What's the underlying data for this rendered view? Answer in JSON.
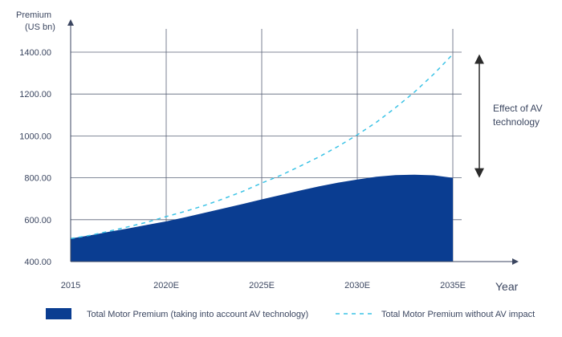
{
  "chart_data": {
    "type": "area",
    "ylabel_lines": [
      "Premium",
      "(US bn)"
    ],
    "xlabel": "Year",
    "x_categories": [
      "2015",
      "2020E",
      "2025E",
      "2030E",
      "2035E"
    ],
    "y_ticks": [
      "400.00",
      "600.00",
      "800.00",
      "1000.00",
      "1200.00",
      "1400.00"
    ],
    "ylim": [
      400,
      1400
    ],
    "xlim": [
      2015,
      2035
    ],
    "grid": true,
    "series": [
      {
        "name": "Total Motor Premium (taking into account AV technology)",
        "style": "filled-area",
        "color": "#0a3d91",
        "points": [
          [
            2015,
            510
          ],
          [
            2016,
            525
          ],
          [
            2017,
            542
          ],
          [
            2018,
            558
          ],
          [
            2019,
            575
          ],
          [
            2020,
            592
          ],
          [
            2021,
            612
          ],
          [
            2022,
            633
          ],
          [
            2023,
            654
          ],
          [
            2024,
            675
          ],
          [
            2025,
            697
          ],
          [
            2026,
            718
          ],
          [
            2027,
            739
          ],
          [
            2028,
            759
          ],
          [
            2029,
            777
          ],
          [
            2030,
            792
          ],
          [
            2031,
            805
          ],
          [
            2032,
            813
          ],
          [
            2033,
            815
          ],
          [
            2034,
            812
          ],
          [
            2035,
            800
          ]
        ]
      },
      {
        "name": "Total Motor Premium without AV impact",
        "style": "dashed-line",
        "color": "#3cc3e6",
        "points": [
          [
            2015,
            510
          ],
          [
            2016,
            525
          ],
          [
            2017,
            545
          ],
          [
            2018,
            566
          ],
          [
            2019,
            588
          ],
          [
            2020,
            615
          ],
          [
            2021,
            640
          ],
          [
            2022,
            668
          ],
          [
            2023,
            700
          ],
          [
            2024,
            735
          ],
          [
            2025,
            775
          ],
          [
            2026,
            812
          ],
          [
            2027,
            855
          ],
          [
            2028,
            900
          ],
          [
            2029,
            950
          ],
          [
            2030,
            1005
          ],
          [
            2031,
            1065
          ],
          [
            2032,
            1135
          ],
          [
            2033,
            1210
          ],
          [
            2034,
            1295
          ],
          [
            2035,
            1390
          ]
        ]
      }
    ],
    "annotation": {
      "lines": [
        "Effect of AV",
        "technology"
      ],
      "from_value": 1390,
      "to_value": 800
    },
    "legend_position": "bottom"
  }
}
